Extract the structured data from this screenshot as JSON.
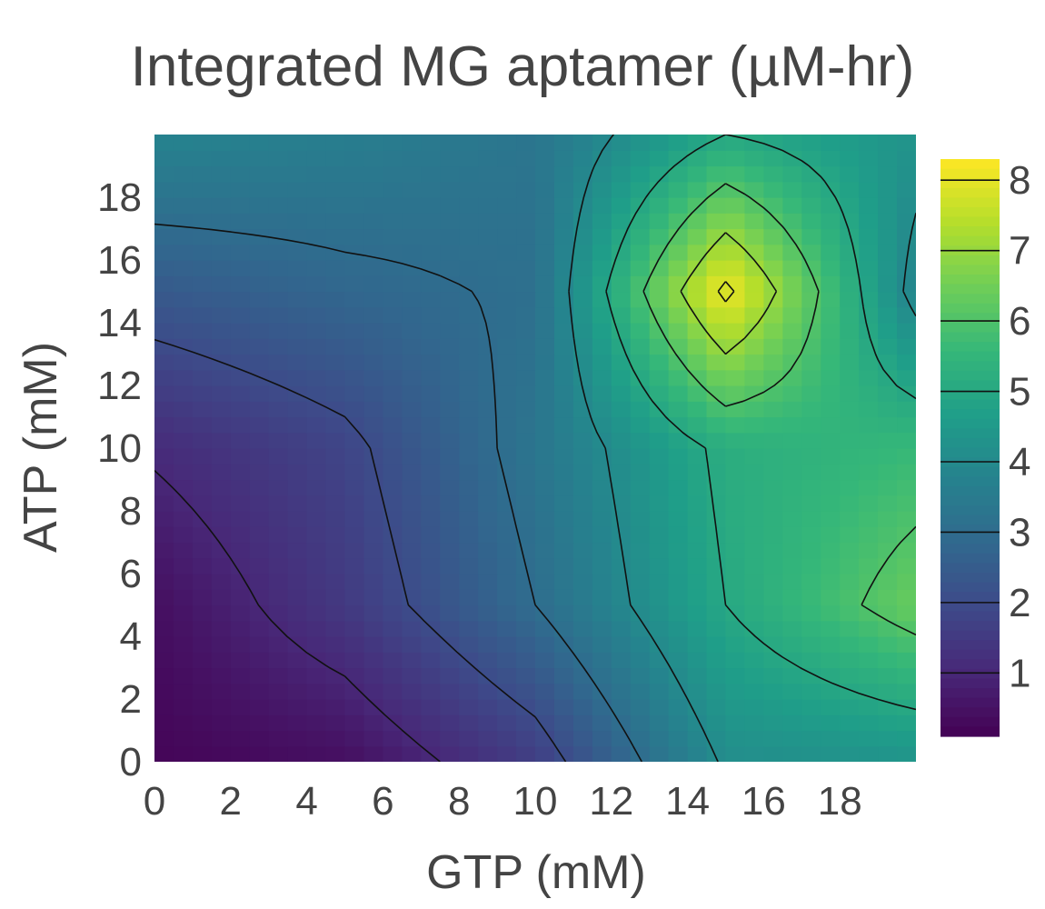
{
  "chart_data": {
    "type": "heatmap",
    "title": "Integrated MG aptamer (µM-hr)",
    "xlabel": "GTP (mM)",
    "ylabel": "ATP (mM)",
    "xlim": [
      0,
      20
    ],
    "ylim": [
      0,
      20
    ],
    "x_ticks": [
      "0",
      "2",
      "4",
      "6",
      "8",
      "10",
      "12",
      "14",
      "16",
      "18"
    ],
    "y_ticks": [
      "0",
      "2",
      "4",
      "6",
      "8",
      "10",
      "12",
      "14",
      "16",
      "18"
    ],
    "colorscale": "Viridis",
    "colorbar": {
      "range": [
        0.1,
        8.3
      ],
      "ticks": [
        "1",
        "2",
        "3",
        "4",
        "5",
        "6",
        "7",
        "8"
      ],
      "colors": [
        "#440154",
        "#482878",
        "#3e4989",
        "#31688e",
        "#26828e",
        "#1f9e89",
        "#35b779",
        "#6ece58",
        "#b5de2b",
        "#fde725"
      ]
    },
    "contour_levels": [
      1,
      2,
      3,
      4,
      5,
      6,
      7,
      8
    ],
    "x": [
      0,
      5,
      10,
      15,
      20
    ],
    "y": [
      0,
      5,
      10,
      15,
      20
    ],
    "z": [
      [
        0.2,
        0.4,
        1.6,
        4.1,
        4.3
      ],
      [
        0.4,
        1.5,
        3.0,
        5.0,
        6.4
      ],
      [
        1.1,
        1.8,
        3.3,
        5.2,
        5.6
      ],
      [
        2.4,
        2.8,
        3.1,
        8.2,
        3.7
      ],
      [
        3.8,
        3.6,
        3.3,
        5.0,
        4.3
      ]
    ],
    "grid": false,
    "colorbar_position": "right"
  }
}
